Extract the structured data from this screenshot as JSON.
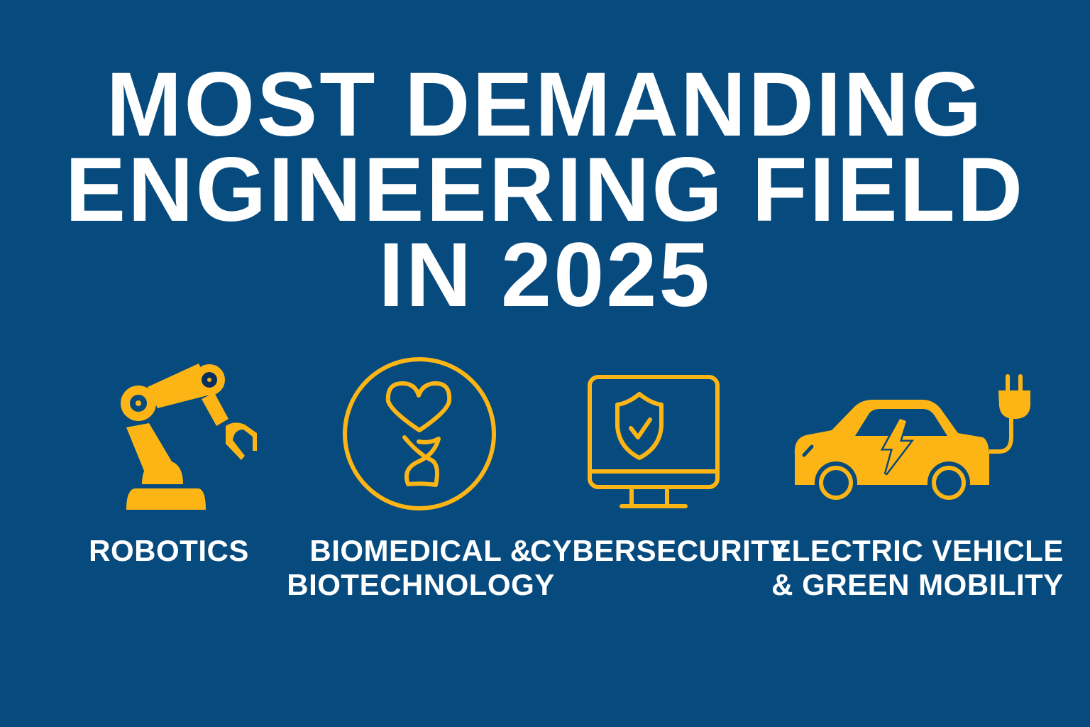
{
  "title": {
    "lines": [
      "MOST DEMANDING",
      "ENGINEERING FIELD",
      "IN 2025"
    ]
  },
  "colors": {
    "background": "#064a7e",
    "accent": "#fdb515",
    "text": "#ffffff"
  },
  "fields": [
    {
      "icon": "robotic-arm-icon",
      "label_lines": [
        "ROBOTICS"
      ]
    },
    {
      "icon": "heart-dna-icon",
      "label_lines": [
        "BIOMEDICAL &",
        "BIOTECHNOLOGY"
      ]
    },
    {
      "icon": "monitor-shield-icon",
      "label_lines": [
        "CYBERSECURITY"
      ]
    },
    {
      "icon": "electric-car-icon",
      "label_lines": [
        "ELECTRIC VEHICLE",
        "& GREEN MOBILITY"
      ]
    }
  ]
}
